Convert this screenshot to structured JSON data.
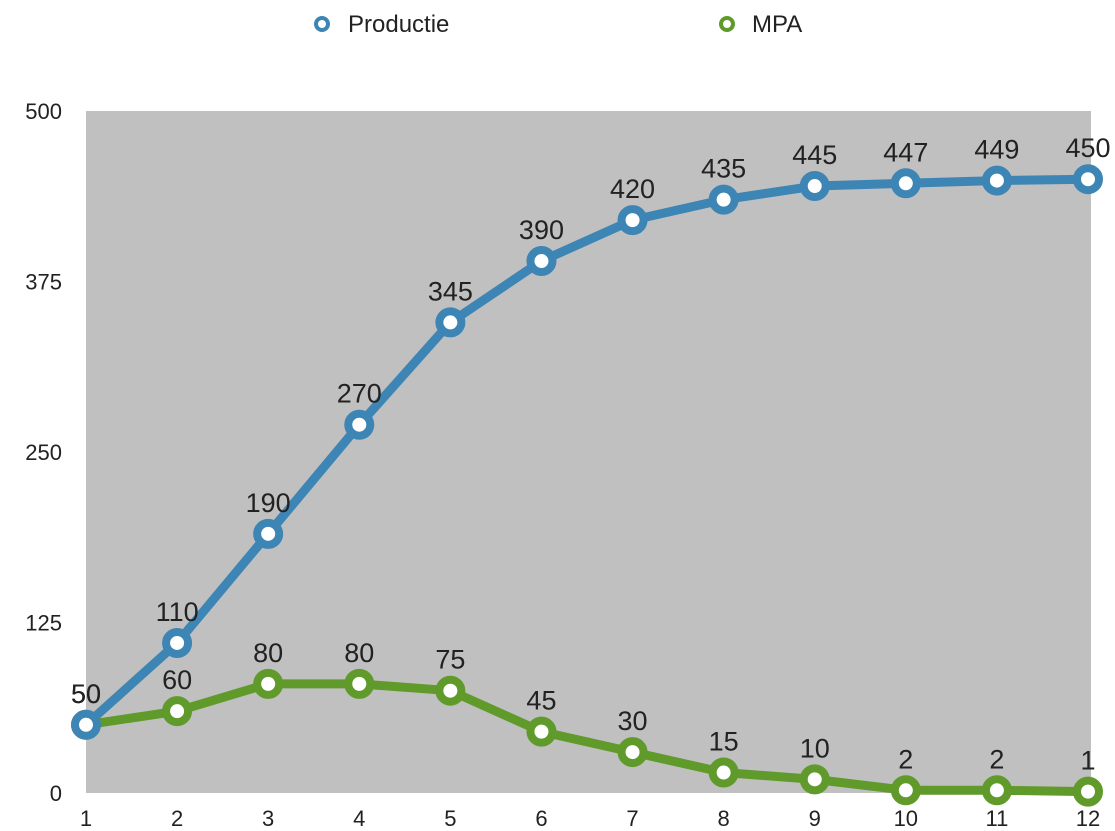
{
  "chart_data": {
    "type": "line",
    "title": "",
    "xlabel": "",
    "ylabel": "",
    "x": [
      "1",
      "2",
      "3",
      "4",
      "5",
      "6",
      "7",
      "8",
      "9",
      "10",
      "11",
      "12"
    ],
    "ylim": [
      0,
      500
    ],
    "yticks": [
      "0",
      "125",
      "250",
      "375",
      "500"
    ],
    "grid": false,
    "legend_position": "top-center",
    "plot_background": "#c0c0c0",
    "series": [
      {
        "name": "Productie",
        "color": "#3d85b4",
        "values": [
          50,
          110,
          190,
          270,
          345,
          390,
          420,
          435,
          445,
          447,
          449,
          450
        ],
        "labels": [
          "50",
          "110",
          "190",
          "270",
          "345",
          "390",
          "420",
          "435",
          "445",
          "447",
          "449",
          "450"
        ]
      },
      {
        "name": "MPA",
        "color": "#5f9a2a",
        "values": [
          50,
          60,
          80,
          80,
          75,
          45,
          30,
          15,
          10,
          2,
          2,
          1
        ],
        "labels": [
          "50",
          "60",
          "80",
          "80",
          "75",
          "45",
          "30",
          "15",
          "10",
          "2",
          "2",
          "1"
        ]
      }
    ]
  }
}
